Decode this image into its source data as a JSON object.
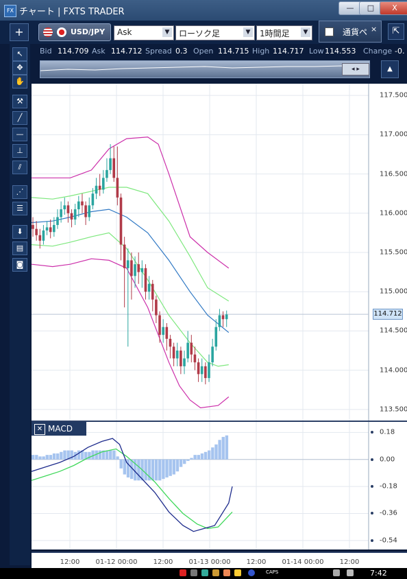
{
  "window": {
    "app_icon_text": "FX",
    "title": "チャート | FXTS TRADER",
    "controls": {
      "minimize": "—",
      "maximize": "□",
      "close": "X"
    }
  },
  "toolbar": {
    "add_label": "+",
    "symbol": "USD/JPY",
    "price_type": "Ask",
    "chart_type": "ローソク足",
    "timeframe": "1時間足",
    "pair_tab_label": "通貨ペ",
    "pair_tab_close": "×",
    "collapse_label": "⇱"
  },
  "quotes": {
    "bid_label": "Bid",
    "bid": "114.709",
    "ask_label": "Ask",
    "ask": "114.712",
    "spread_label": "Spread",
    "spread": "0.3",
    "open_label": "Open",
    "open": "114.715",
    "high_label": "High",
    "high": "114.717",
    "low_label": "Low",
    "low": "114.553",
    "change_label": "Change",
    "change": "-0."
  },
  "sparkline": {
    "nav_label": "◂ ▸",
    "lock_label": "▲"
  },
  "sidebar": {
    "tools": [
      {
        "name": "pointer-icon",
        "glyph": "↖"
      },
      {
        "name": "crosshair-pointer-icon",
        "glyph": "✥"
      },
      {
        "name": "hand-icon",
        "glyph": "✋"
      },
      {
        "name": "hammer-icon",
        "glyph": "⚒"
      },
      {
        "name": "trendline-icon",
        "glyph": "╱"
      },
      {
        "name": "horizontal-line-icon",
        "glyph": "—"
      },
      {
        "name": "vertical-line-icon",
        "glyph": "⊥"
      },
      {
        "name": "parallel-lines-icon",
        "glyph": "⫽"
      },
      {
        "name": "fan-icon",
        "glyph": "⋰"
      },
      {
        "name": "fibonacci-icon",
        "glyph": "☰"
      },
      {
        "name": "download-icon",
        "glyph": "⬇"
      },
      {
        "name": "list-icon",
        "glyph": "▤"
      },
      {
        "name": "camera-icon",
        "glyph": "◙"
      }
    ]
  },
  "chart_data": [
    {
      "type": "candlestick",
      "title": "",
      "xlabel": "",
      "ylabel": "",
      "ylim": [
        113.35,
        117.65
      ],
      "y_ticks": [
        "117.500",
        "117.000",
        "116.500",
        "116.000",
        "115.500",
        "115.000",
        "114.500",
        "114.000",
        "113.500"
      ],
      "current_price": "114.712",
      "up_color": "#2aa5a0",
      "down_color": "#b03a48",
      "candles": [
        [
          115.85,
          115.8,
          115.95,
          115.7
        ],
        [
          115.8,
          115.72,
          115.9,
          115.65
        ],
        [
          115.72,
          115.65,
          115.8,
          115.55
        ],
        [
          115.65,
          115.78,
          115.85,
          115.6
        ],
        [
          115.78,
          115.82,
          115.9,
          115.72
        ],
        [
          115.82,
          115.76,
          115.92,
          115.68
        ],
        [
          115.76,
          115.85,
          115.95,
          115.7
        ],
        [
          115.85,
          115.95,
          116.05,
          115.8
        ],
        [
          115.95,
          116.05,
          116.15,
          115.88
        ],
        [
          116.05,
          116.1,
          116.2,
          115.98
        ],
        [
          116.1,
          116.0,
          116.15,
          115.88
        ],
        [
          116.0,
          115.92,
          116.05,
          115.82
        ],
        [
          115.92,
          116.05,
          116.12,
          115.85
        ],
        [
          116.05,
          116.15,
          116.22,
          115.95
        ],
        [
          116.15,
          116.1,
          116.25,
          116.0
        ],
        [
          116.1,
          115.95,
          116.15,
          115.85
        ],
        [
          115.95,
          116.1,
          116.2,
          115.9
        ],
        [
          116.1,
          116.25,
          116.32,
          116.05
        ],
        [
          116.25,
          116.35,
          116.45,
          116.18
        ],
        [
          116.35,
          116.3,
          116.5,
          116.22
        ],
        [
          116.3,
          116.45,
          116.55,
          116.25
        ],
        [
          116.45,
          116.55,
          116.7,
          116.4
        ],
        [
          116.55,
          116.7,
          116.88,
          116.5
        ],
        [
          116.7,
          116.45,
          116.85,
          116.4
        ],
        [
          116.45,
          116.2,
          116.85,
          116.1
        ],
        [
          116.2,
          115.6,
          116.25,
          115.4
        ],
        [
          115.6,
          115.3,
          115.7,
          114.8
        ],
        [
          115.3,
          115.4,
          115.55,
          114.3
        ],
        [
          115.4,
          115.2,
          115.5,
          114.9
        ],
        [
          115.2,
          115.35,
          115.45,
          115.05
        ],
        [
          115.35,
          115.25,
          115.5,
          115.1
        ],
        [
          115.25,
          115.3,
          115.4,
          115.05
        ],
        [
          115.3,
          115.0,
          115.35,
          114.9
        ],
        [
          115.0,
          115.1,
          115.2,
          114.9
        ],
        [
          115.1,
          114.9,
          115.15,
          114.75
        ],
        [
          114.9,
          114.7,
          114.95,
          114.6
        ],
        [
          114.7,
          114.45,
          114.75,
          114.35
        ],
        [
          114.45,
          114.55,
          114.65,
          114.35
        ],
        [
          114.55,
          114.4,
          114.6,
          114.25
        ],
        [
          114.4,
          114.3,
          114.45,
          114.15
        ],
        [
          114.3,
          114.15,
          114.35,
          114.05
        ],
        [
          114.15,
          114.25,
          114.35,
          114.05
        ],
        [
          114.25,
          114.05,
          114.3,
          113.95
        ],
        [
          114.05,
          114.15,
          114.25,
          113.95
        ],
        [
          114.15,
          114.35,
          114.5,
          114.1
        ],
        [
          114.35,
          114.2,
          114.45,
          114.1
        ],
        [
          114.2,
          114.1,
          114.3,
          114.0
        ],
        [
          114.1,
          113.95,
          114.15,
          113.85
        ],
        [
          113.95,
          114.05,
          114.15,
          113.85
        ],
        [
          114.05,
          113.9,
          114.1,
          113.82
        ],
        [
          113.9,
          114.1,
          114.2,
          113.85
        ],
        [
          114.1,
          114.3,
          114.4,
          114.05
        ],
        [
          114.3,
          114.55,
          114.65,
          114.25
        ],
        [
          114.55,
          114.7,
          114.78,
          114.5
        ],
        [
          114.7,
          114.65,
          114.75,
          114.55
        ],
        [
          114.65,
          114.71,
          114.76,
          114.55
        ]
      ],
      "bollinger": {
        "middle_color": "#2f78c4",
        "band1_color": "#7ee87e",
        "band2_color": "#cc2faa",
        "middle": [
          [
            0,
            115.88
          ],
          [
            6,
            115.9
          ],
          [
            11,
            115.95
          ],
          [
            17,
            116.02
          ],
          [
            22,
            116.05
          ],
          [
            27,
            115.95
          ],
          [
            33,
            115.75
          ],
          [
            39,
            115.4
          ],
          [
            45,
            115.0
          ],
          [
            50,
            114.7
          ],
          [
            56,
            114.48
          ]
        ],
        "upper1": [
          [
            0,
            116.2
          ],
          [
            6,
            116.18
          ],
          [
            11,
            116.22
          ],
          [
            17,
            116.28
          ],
          [
            22,
            116.33
          ],
          [
            27,
            116.33
          ],
          [
            33,
            116.25
          ],
          [
            39,
            115.9
          ],
          [
            45,
            115.45
          ],
          [
            50,
            115.05
          ],
          [
            56,
            114.88
          ]
        ],
        "lower1": [
          [
            0,
            115.6
          ],
          [
            6,
            115.58
          ],
          [
            11,
            115.63
          ],
          [
            17,
            115.7
          ],
          [
            22,
            115.75
          ],
          [
            27,
            115.55
          ],
          [
            33,
            115.15
          ],
          [
            39,
            114.7
          ],
          [
            45,
            114.35
          ],
          [
            50,
            114.1
          ],
          [
            53,
            114.05
          ],
          [
            56,
            114.07
          ]
        ],
        "upper2": [
          [
            0,
            116.45
          ],
          [
            6,
            116.45
          ],
          [
            11,
            116.45
          ],
          [
            17,
            116.55
          ],
          [
            22,
            116.82
          ],
          [
            27,
            116.95
          ],
          [
            33,
            116.97
          ],
          [
            36,
            116.88
          ],
          [
            39,
            116.5
          ],
          [
            45,
            115.7
          ],
          [
            50,
            115.5
          ],
          [
            56,
            115.3
          ]
        ],
        "lower2": [
          [
            0,
            115.35
          ],
          [
            6,
            115.32
          ],
          [
            11,
            115.35
          ],
          [
            17,
            115.42
          ],
          [
            22,
            115.4
          ],
          [
            27,
            115.3
          ],
          [
            33,
            114.8
          ],
          [
            39,
            114.1
          ],
          [
            42,
            113.8
          ],
          [
            45,
            113.62
          ],
          [
            48,
            113.52
          ],
          [
            53,
            113.55
          ],
          [
            56,
            113.66
          ]
        ]
      }
    },
    {
      "type": "macd",
      "title": "MACD",
      "ylim": [
        -0.6,
        0.25
      ],
      "y_ticks": [
        "0.18",
        "0.00",
        "-0.18",
        "-0.36",
        "-0.54"
      ],
      "tick_values": [
        0.18,
        0.0,
        -0.18,
        -0.36,
        -0.54
      ],
      "histogram_color": "#a6c4ef",
      "macd_color": "#1d2b8c",
      "signal_color": "#3fd85a",
      "histogram": [
        0.03,
        0.03,
        0.02,
        0.02,
        0.03,
        0.03,
        0.04,
        0.04,
        0.05,
        0.06,
        0.06,
        0.06,
        0.05,
        0.06,
        0.06,
        0.05,
        0.05,
        0.06,
        0.06,
        0.06,
        0.06,
        0.06,
        0.06,
        0.06,
        0.02,
        -0.06,
        -0.1,
        -0.12,
        -0.13,
        -0.14,
        -0.14,
        -0.14,
        -0.14,
        -0.14,
        -0.14,
        -0.14,
        -0.14,
        -0.13,
        -0.12,
        -0.11,
        -0.1,
        -0.08,
        -0.05,
        -0.03,
        -0.01,
        0.01,
        0.03,
        0.03,
        0.04,
        0.05,
        0.06,
        0.08,
        0.1,
        0.13,
        0.15,
        0.16
      ],
      "macd": [
        [
          0,
          -0.08
        ],
        [
          4,
          -0.05
        ],
        [
          8,
          -0.02
        ],
        [
          12,
          0.02
        ],
        [
          16,
          0.08
        ],
        [
          20,
          0.12
        ],
        [
          23,
          0.14
        ],
        [
          25,
          0.1
        ],
        [
          27,
          -0.02
        ],
        [
          31,
          -0.12
        ],
        [
          35,
          -0.22
        ],
        [
          39,
          -0.35
        ],
        [
          43,
          -0.44
        ],
        [
          46,
          -0.48
        ],
        [
          49,
          -0.46
        ],
        [
          52,
          -0.44
        ],
        [
          56,
          -0.29
        ],
        [
          57,
          -0.18
        ]
      ],
      "signal": [
        [
          0,
          -0.14
        ],
        [
          4,
          -0.11
        ],
        [
          8,
          -0.08
        ],
        [
          12,
          -0.04
        ],
        [
          16,
          0.01
        ],
        [
          20,
          0.05
        ],
        [
          24,
          0.07
        ],
        [
          27,
          0.02
        ],
        [
          31,
          -0.06
        ],
        [
          35,
          -0.15
        ],
        [
          39,
          -0.26
        ],
        [
          43,
          -0.36
        ],
        [
          47,
          -0.43
        ],
        [
          50,
          -0.46
        ],
        [
          53,
          -0.45
        ],
        [
          57,
          -0.35
        ]
      ]
    }
  ],
  "x_axis": {
    "labels": [
      {
        "text": "12:00",
        "pos": 56
      },
      {
        "text": "01-12 00:00",
        "pos": 124
      },
      {
        "text": "12:00",
        "pos": 192
      },
      {
        "text": "01-13 00:00",
        "pos": 260
      },
      {
        "text": "12:00",
        "pos": 328
      },
      {
        "text": "01-14 00:00",
        "pos": 396
      },
      {
        "text": "12:00",
        "pos": 464
      }
    ]
  },
  "taskbar": {
    "caps": "CAPS",
    "time": "7:42"
  }
}
